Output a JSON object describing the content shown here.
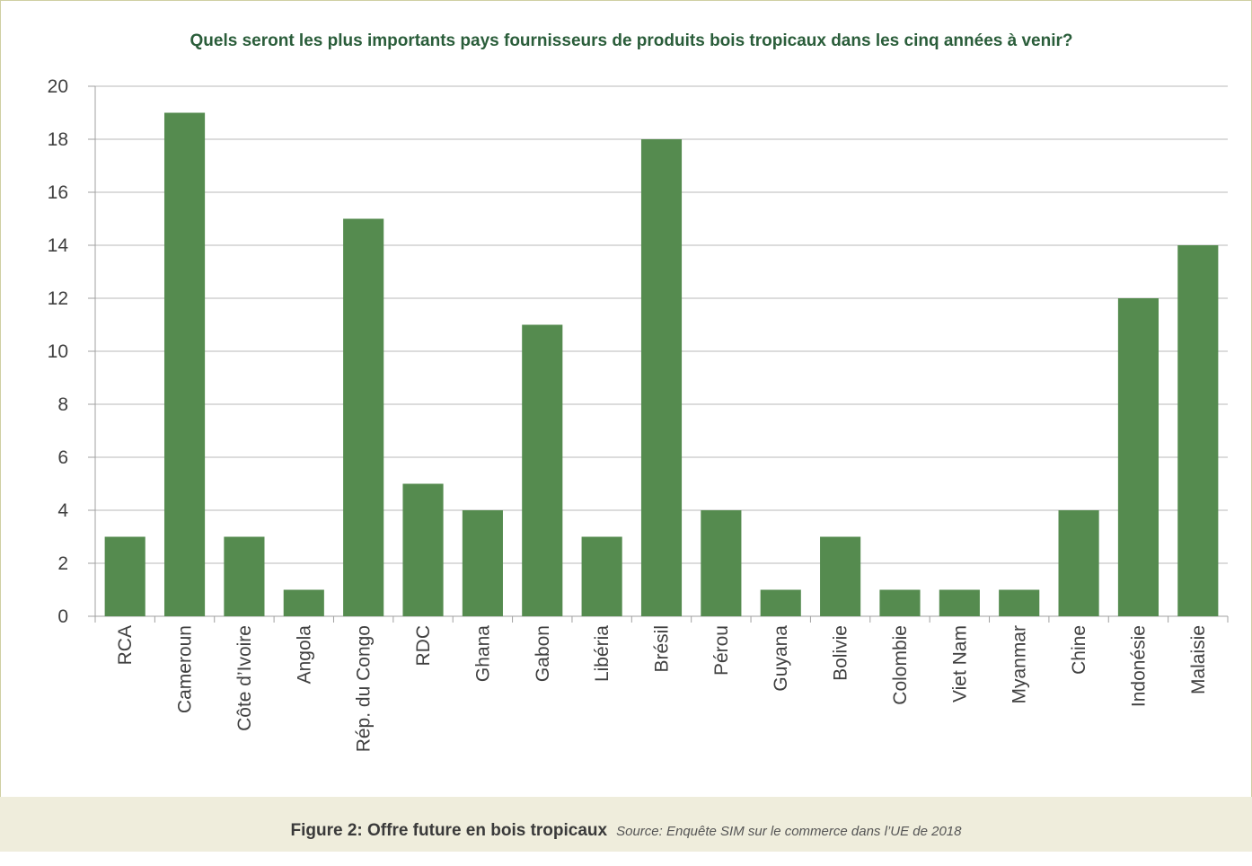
{
  "colors": {
    "bar": "#558b4f",
    "grid": "#b8b8b8",
    "axis": "#a0a0a0",
    "title": "#2a5d3a",
    "footer_bg": "#efeddc"
  },
  "caption": {
    "figure": "Figure 2: Offre future en bois tropicaux",
    "source": "Source: Enquête SIM sur le commerce dans l’UE de 2018"
  },
  "chart_data": {
    "type": "bar",
    "title": "Quels seront les plus importants pays fournisseurs de produits bois tropicaux dans les cinq années à venir?",
    "xlabel": "",
    "ylabel": "",
    "ylim": [
      0,
      20
    ],
    "yticks": [
      0,
      2,
      4,
      6,
      8,
      10,
      12,
      14,
      16,
      18,
      20
    ],
    "grid": true,
    "legend": "none",
    "categories": [
      "RCA",
      "Cameroun",
      "Côte d’Ivoire",
      "Angola",
      "Rép. du Congo",
      "RDC",
      "Ghana",
      "Gabon",
      "Libéria",
      "Brésil",
      "Pérou",
      "Guyana",
      "Bolivie",
      "Colombie",
      "Viet Nam",
      "Myanmar",
      "Chine",
      "Indonésie",
      "Malaisie"
    ],
    "values": [
      3,
      19,
      3,
      1,
      15,
      5,
      4,
      11,
      3,
      18,
      4,
      1,
      3,
      1,
      1,
      1,
      4,
      12,
      14
    ]
  }
}
